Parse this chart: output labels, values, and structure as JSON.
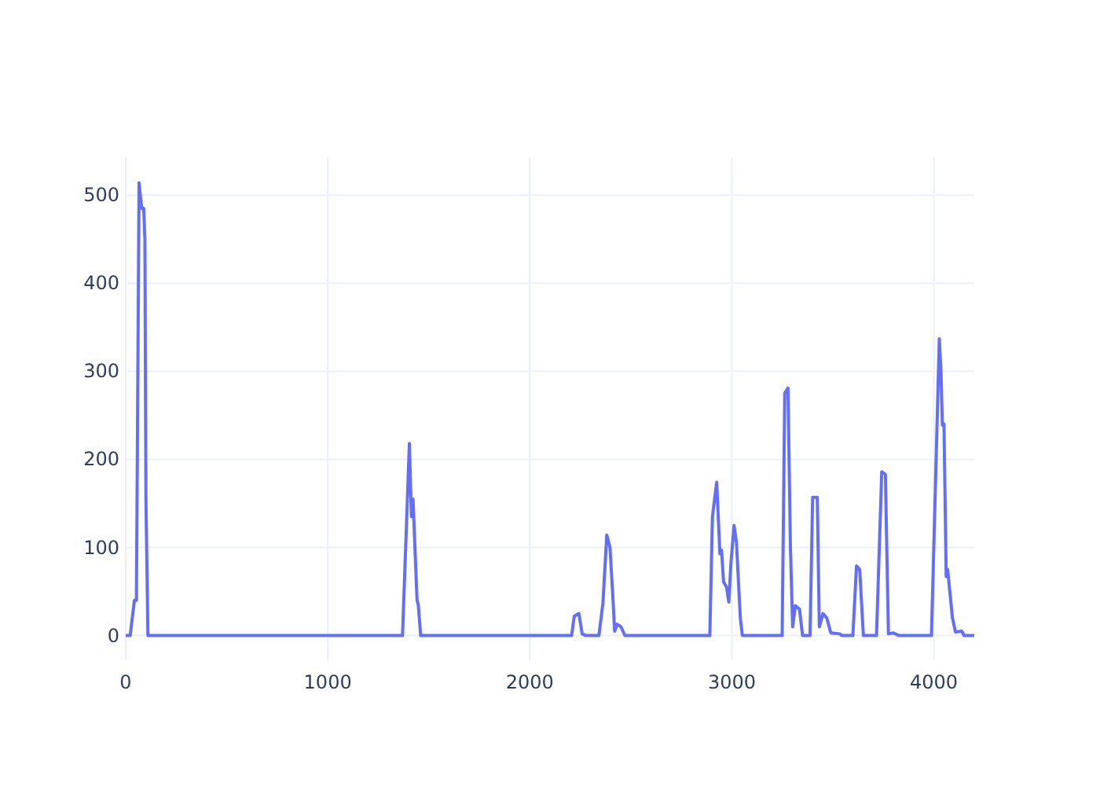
{
  "chart_data": {
    "type": "line",
    "x": [
      0,
      22,
      43,
      53,
      66,
      79,
      89,
      95,
      100,
      110,
      1370,
      1404,
      1414,
      1422,
      1442,
      1448,
      1460,
      2207,
      2220,
      2243,
      2259,
      2277,
      2342,
      2362,
      2381,
      2397,
      2412,
      2420,
      2432,
      2451,
      2471,
      2891,
      2904,
      2925,
      2941,
      2949,
      2959,
      2974,
      2985,
      2995,
      3011,
      3023,
      3042,
      3052,
      3249,
      3262,
      3278,
      3290,
      3301,
      3314,
      3335,
      3350,
      3387,
      3400,
      3423,
      3433,
      3451,
      3470,
      3490,
      3534,
      3545,
      3599,
      3617,
      3633,
      3651,
      3716,
      3742,
      3760,
      3775,
      3800,
      3827,
      3988,
      4027,
      4035,
      4042,
      4050,
      4061,
      4068,
      4092,
      4107,
      4138,
      4149,
      4200
    ],
    "series": [
      {
        "color": "#636efa",
        "values": [
          0,
          0,
          40,
          40,
          514,
          485,
          485,
          450,
          156,
          0,
          0,
          218,
          135,
          155,
          40,
          35,
          0,
          0,
          22,
          25,
          2,
          0,
          0,
          37,
          114,
          100,
          40,
          5,
          13,
          10,
          0,
          0,
          135,
          174,
          93,
          97,
          61,
          55,
          38,
          80,
          125,
          105,
          20,
          0,
          0,
          275,
          281,
          100,
          10,
          34,
          30,
          0,
          0,
          157,
          157,
          10,
          25,
          20,
          3,
          2,
          0,
          0,
          79,
          75,
          0,
          0,
          186,
          183,
          2,
          3,
          0,
          0,
          337,
          300,
          239,
          240,
          67,
          75,
          20,
          4,
          5,
          0,
          0
        ]
      }
    ],
    "xlim": [
      0,
      4200
    ],
    "ylim": [
      -28,
      543
    ],
    "xticks": [
      0,
      1000,
      2000,
      3000,
      4000
    ],
    "yticks": [
      0,
      100,
      200,
      300,
      400,
      500
    ],
    "grid": true,
    "marker": "none",
    "line_style": "solid"
  }
}
